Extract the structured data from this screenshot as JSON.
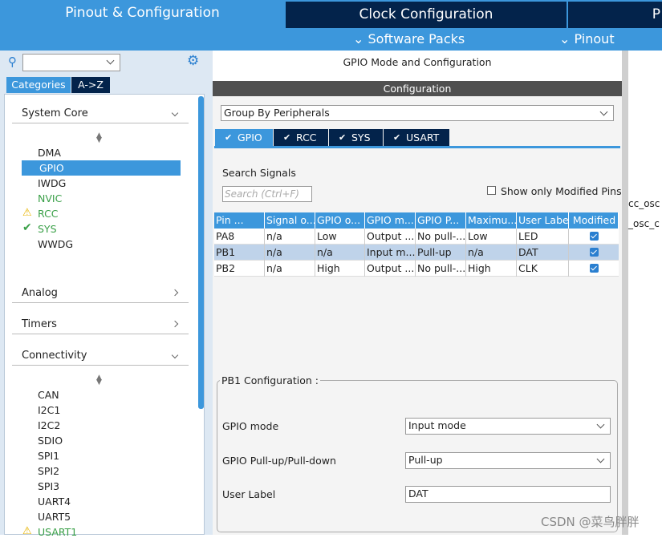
{
  "top_tabs": [
    "Pinout & Configuration",
    "Clock Configuration",
    "P"
  ],
  "sub_bar": [
    "Software Packs",
    "Pinout"
  ],
  "left": {
    "tabs": [
      "Categories",
      "A->Z"
    ],
    "sections": [
      {
        "title": "System Core",
        "items": [
          "DMA",
          "GPIO",
          "IWDG",
          "NVIC",
          "RCC",
          "SYS",
          "WWDG"
        ]
      },
      {
        "title": "Analog"
      },
      {
        "title": "Timers"
      },
      {
        "title": "Connectivity",
        "items": [
          "CAN",
          "I2C1",
          "I2C2",
          "SDIO",
          "SPI1",
          "SPI2",
          "SPI3",
          "UART4",
          "UART5",
          "USART1"
        ]
      }
    ]
  },
  "main": {
    "header": "GPIO Mode and Configuration",
    "bar": "Configuration",
    "group_by": "Group By Peripherals",
    "tabs": [
      "GPIO",
      "RCC",
      "SYS",
      "USART"
    ],
    "search_label": "Search Signals",
    "search_placeholder": "Search (Ctrl+F)",
    "show_modified": "Show only Modified Pins",
    "table": {
      "columns": [
        "Pin ...",
        "Signal o...",
        "GPIO o...",
        "GPIO m...",
        "GPIO P...",
        "Maximu...",
        "User Label",
        "Modified"
      ],
      "rows": [
        [
          "PA8",
          "n/a",
          "Low",
          "Output ...",
          "No pull-...",
          "Low",
          "LED"
        ],
        [
          "PB1",
          "n/a",
          "n/a",
          "Input m...",
          "Pull-up",
          "n/a",
          "DAT"
        ],
        [
          "PB2",
          "n/a",
          "High",
          "Output ...",
          "No pull-...",
          "High",
          "CLK"
        ]
      ]
    },
    "config": {
      "title": "PB1 Configuration :",
      "fields": [
        {
          "label": "GPIO mode",
          "value": "Input mode"
        },
        {
          "label": "GPIO Pull-up/Pull-down",
          "value": "Pull-up"
        },
        {
          "label": "User Label",
          "value": "DAT"
        }
      ]
    }
  },
  "right_clip": [
    "cc_osc",
    "_osc_c"
  ],
  "watermark": "CSDN @菜鸟胖胖"
}
